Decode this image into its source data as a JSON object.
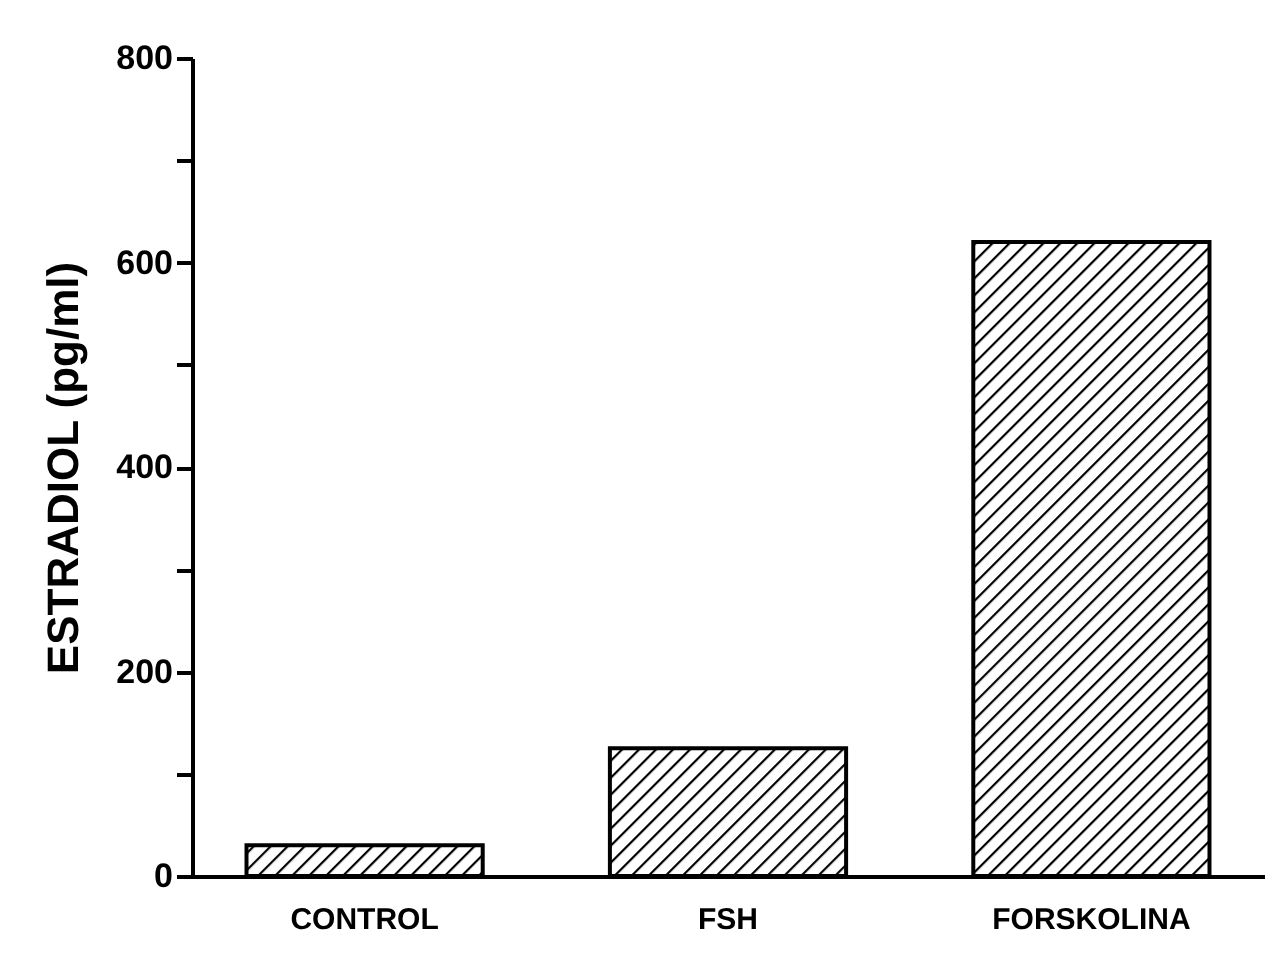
{
  "chart_data": {
    "type": "bar",
    "ylabel": "ESTRADIOL (pg/ml)",
    "categories": [
      "CONTROL",
      "FSH",
      "FORSKOLINA"
    ],
    "values": [
      30,
      125,
      620
    ],
    "color": "#000000",
    "ylim": [
      0,
      800
    ],
    "yticks": [
      0,
      {
        "value": 100,
        "label": null
      },
      200,
      {
        "value": 300,
        "label": null
      },
      400,
      {
        "value": 500,
        "label": null
      },
      600,
      {
        "value": 700,
        "label": null
      },
      800
    ],
    "grid": false
  }
}
